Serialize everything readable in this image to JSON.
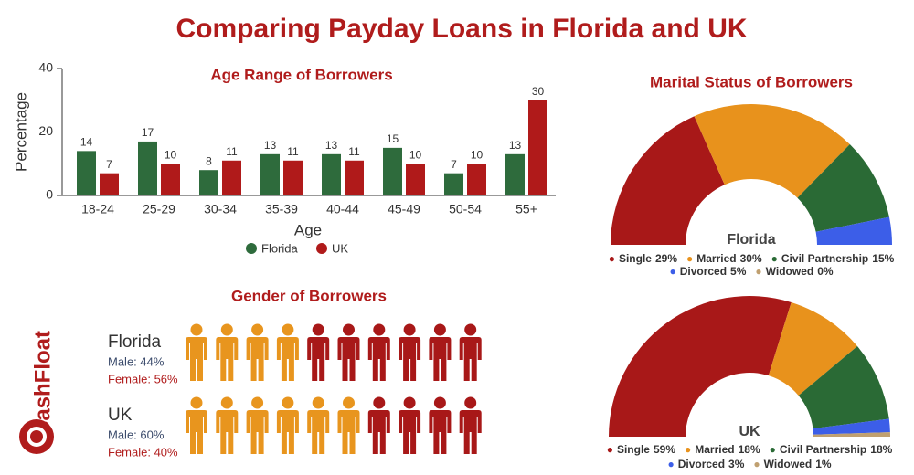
{
  "title": "Comparing Payday Loans in Florida and UK",
  "logo": "CashFloat",
  "chart_data": [
    {
      "type": "bar",
      "title": "Age Range of Borrowers",
      "x_label": "Age",
      "y_label": "Percentage",
      "categories": [
        "18-24",
        "25-29",
        "30-34",
        "35-39",
        "40-44",
        "45-49",
        "50-54",
        "55+"
      ],
      "series": [
        {
          "name": "Florida",
          "color": "#2e6b3c",
          "values": [
            14,
            17,
            8,
            13,
            13,
            15,
            7,
            13
          ]
        },
        {
          "name": "UK",
          "color": "#b01a1a",
          "values": [
            7,
            10,
            11,
            11,
            11,
            10,
            10,
            30
          ]
        }
      ],
      "ylim": [
        0,
        40
      ],
      "yticks": [
        0,
        20,
        40
      ]
    },
    {
      "type": "semi-donut",
      "title": "Marital Status of Borrowers",
      "center_label": "Florida",
      "categories": [
        "Single",
        "Married",
        "Civil Partnership",
        "Divorced",
        "Widowed"
      ],
      "values": [
        29,
        30,
        15,
        5,
        0
      ],
      "value_labels": [
        "29%",
        "30%",
        "15%",
        "5%",
        "0%"
      ],
      "colors": [
        "#a81818",
        "#e8921c",
        "#2a6a35",
        "#3c5ee8",
        "#c0a070"
      ]
    },
    {
      "type": "semi-donut",
      "center_label": "UK",
      "categories": [
        "Single",
        "Married",
        "Civil Partnership",
        "Divorced",
        "Widowed"
      ],
      "values": [
        59,
        18,
        18,
        3,
        1
      ],
      "value_labels": [
        "59%",
        "18%",
        "18%",
        "3%",
        "1%"
      ],
      "colors": [
        "#a81818",
        "#e8921c",
        "#2a6a35",
        "#3c5ee8",
        "#c0a070"
      ]
    },
    {
      "type": "pictogram",
      "title": "Gender of Borrowers",
      "categories": [
        "Florida",
        "UK"
      ],
      "series": [
        {
          "color": "#e8951e",
          "values": [
            44,
            60
          ],
          "value_labels": [
            "Male: 44%",
            "Male: 60%"
          ]
        },
        {
          "color": "#a81818",
          "values": [
            56,
            40
          ],
          "value_labels": [
            "Female: 56%",
            "Female: 40%"
          ]
        }
      ]
    }
  ]
}
